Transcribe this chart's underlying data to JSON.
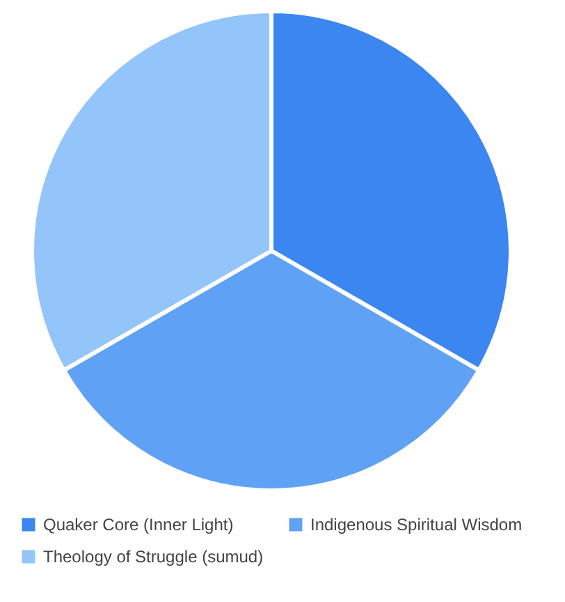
{
  "chart_data": {
    "type": "pie",
    "categories": [
      "Quaker Core (Inner Light)",
      "Indigenous Spiritual Wisdom",
      "Theology of Struggle (sumud)"
    ],
    "values": [
      33.3,
      33.4,
      33.3
    ],
    "colors": [
      "#3b86f0",
      "#5fa2f5",
      "#93c4fa"
    ],
    "legend": "bottom"
  }
}
